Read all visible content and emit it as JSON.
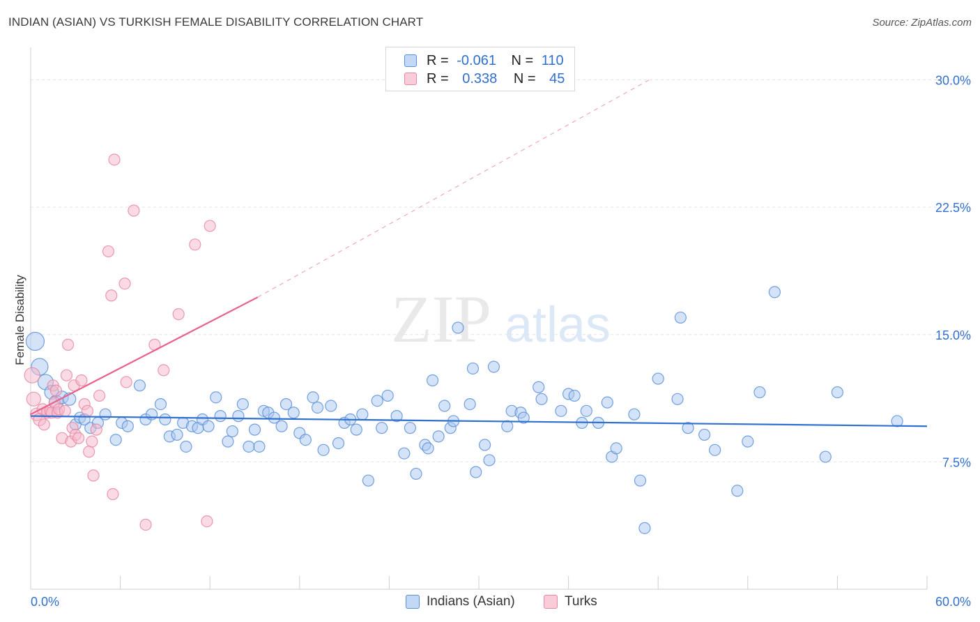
{
  "title": "INDIAN (ASIAN) VS TURKISH FEMALE DISABILITY CORRELATION CHART",
  "source": "Source: ZipAtlas.com",
  "watermark": {
    "zip": "ZIP",
    "atlas": "atlas"
  },
  "colors": {
    "blue": "#2f6fd0",
    "blue_fill": "#a9c8f0",
    "blue_stroke": "#5b8fd8",
    "pink": "#e8608b",
    "pink_fill": "#f5b8cb",
    "pink_stroke": "#e8879f",
    "axis_label": "#2f6fd0",
    "grid": "#e3e3e3"
  },
  "legend": {
    "rows": [
      {
        "r_label": "R =",
        "r_value": "-0.061",
        "n_label": "N =",
        "n_value": "110",
        "color": "blue"
      },
      {
        "r_label": "R =",
        "r_value": "0.338",
        "n_label": "N =",
        "n_value": "45",
        "color": "pink"
      }
    ]
  },
  "chart_data": {
    "type": "scatter",
    "title": "INDIAN (ASIAN) VS TURKISH FEMALE DISABILITY CORRELATION CHART",
    "xlabel": "",
    "ylabel": "Female Disability",
    "xlim": [
      0,
      60
    ],
    "ylim": [
      0,
      31.5
    ],
    "x_tick_labels": [
      "0.0%",
      "60.0%"
    ],
    "y_ticks": [
      7.5,
      15.0,
      22.5,
      30.0
    ],
    "y_tick_labels": [
      "7.5%",
      "15.0%",
      "22.5%",
      "30.0%"
    ],
    "grid": "horizontal dashed",
    "legend_position": "bottom-center",
    "series": [
      {
        "name": "Indians (Asian)",
        "color": "blue",
        "trend": {
          "x0": 0,
          "y0": 10.2,
          "x1": 60,
          "y1": 9.6
        },
        "points": [
          [
            0.3,
            14.6,
            13
          ],
          [
            0.6,
            13.1,
            12
          ],
          [
            1.0,
            12.2,
            11
          ],
          [
            1.4,
            11.6,
            10
          ],
          [
            1.7,
            11.0,
            10
          ],
          [
            2.1,
            11.3,
            9
          ],
          [
            2.6,
            11.2,
            9
          ],
          [
            3.0,
            9.7,
            8
          ],
          [
            3.3,
            10.1,
            8
          ],
          [
            3.6,
            10.0,
            8
          ],
          [
            4.0,
            9.5,
            8
          ],
          [
            4.5,
            9.8,
            8
          ],
          [
            5.0,
            10.3,
            8
          ],
          [
            5.7,
            8.8,
            8
          ],
          [
            6.1,
            9.8,
            8
          ],
          [
            6.5,
            9.6,
            8
          ],
          [
            7.3,
            12.0,
            8
          ],
          [
            7.7,
            10.0,
            8
          ],
          [
            8.1,
            10.3,
            8
          ],
          [
            8.7,
            10.9,
            8
          ],
          [
            9.0,
            10.0,
            8
          ],
          [
            9.3,
            9.0,
            8
          ],
          [
            9.8,
            9.1,
            8
          ],
          [
            10.2,
            9.8,
            8
          ],
          [
            10.4,
            8.4,
            8
          ],
          [
            10.8,
            9.6,
            8
          ],
          [
            11.2,
            9.5,
            8
          ],
          [
            11.5,
            10.0,
            8
          ],
          [
            11.9,
            9.6,
            8
          ],
          [
            12.4,
            11.3,
            8
          ],
          [
            12.7,
            10.2,
            8
          ],
          [
            13.2,
            8.7,
            8
          ],
          [
            13.5,
            9.3,
            8
          ],
          [
            13.9,
            10.2,
            8
          ],
          [
            14.2,
            10.9,
            8
          ],
          [
            14.6,
            8.4,
            8
          ],
          [
            15.0,
            9.4,
            8
          ],
          [
            15.3,
            8.4,
            8
          ],
          [
            15.6,
            10.5,
            8
          ],
          [
            15.9,
            10.4,
            8
          ],
          [
            16.3,
            10.1,
            8
          ],
          [
            16.8,
            9.6,
            8
          ],
          [
            17.1,
            10.9,
            8
          ],
          [
            17.6,
            10.4,
            8
          ],
          [
            18.0,
            9.2,
            8
          ],
          [
            18.4,
            8.8,
            8
          ],
          [
            18.9,
            11.3,
            8
          ],
          [
            19.2,
            10.7,
            8
          ],
          [
            19.6,
            8.2,
            8
          ],
          [
            20.1,
            10.8,
            8
          ],
          [
            20.6,
            8.6,
            8
          ],
          [
            21.0,
            9.8,
            8
          ],
          [
            21.4,
            10.0,
            8
          ],
          [
            21.8,
            9.4,
            8
          ],
          [
            22.2,
            10.3,
            8
          ],
          [
            22.6,
            6.4,
            8
          ],
          [
            23.2,
            11.1,
            8
          ],
          [
            23.5,
            9.5,
            8
          ],
          [
            23.9,
            11.4,
            8
          ],
          [
            24.5,
            10.2,
            8
          ],
          [
            25.0,
            8.0,
            8
          ],
          [
            25.4,
            9.5,
            8
          ],
          [
            25.8,
            6.8,
            8
          ],
          [
            26.4,
            8.5,
            8
          ],
          [
            26.6,
            8.3,
            8
          ],
          [
            26.9,
            12.3,
            8
          ],
          [
            27.3,
            9.0,
            8
          ],
          [
            27.7,
            10.8,
            8
          ],
          [
            28.1,
            9.5,
            8
          ],
          [
            28.3,
            9.9,
            8
          ],
          [
            28.6,
            15.4,
            8
          ],
          [
            29.4,
            10.9,
            8
          ],
          [
            29.6,
            13.0,
            8
          ],
          [
            29.8,
            6.9,
            8
          ],
          [
            30.4,
            8.5,
            8
          ],
          [
            30.7,
            7.6,
            8
          ],
          [
            31.0,
            13.1,
            8
          ],
          [
            31.9,
            9.6,
            8
          ],
          [
            32.2,
            10.5,
            8
          ],
          [
            32.8,
            10.4,
            8
          ],
          [
            33.0,
            10.1,
            8
          ],
          [
            34.0,
            11.9,
            8
          ],
          [
            34.2,
            11.2,
            8
          ],
          [
            35.5,
            10.5,
            8
          ],
          [
            36.0,
            11.5,
            8
          ],
          [
            36.4,
            11.4,
            8
          ],
          [
            36.9,
            9.8,
            8
          ],
          [
            37.2,
            10.5,
            8
          ],
          [
            38.0,
            9.8,
            8
          ],
          [
            38.6,
            11.0,
            8
          ],
          [
            38.9,
            7.8,
            8
          ],
          [
            39.2,
            8.3,
            8
          ],
          [
            40.4,
            10.3,
            8
          ],
          [
            40.8,
            6.4,
            8
          ],
          [
            41.1,
            3.6,
            8
          ],
          [
            42.0,
            12.4,
            8
          ],
          [
            43.3,
            11.2,
            8
          ],
          [
            43.5,
            16.0,
            8
          ],
          [
            44.0,
            9.5,
            8
          ],
          [
            45.1,
            9.1,
            8
          ],
          [
            45.8,
            8.2,
            8
          ],
          [
            47.3,
            5.8,
            8
          ],
          [
            48.0,
            8.7,
            8
          ],
          [
            48.8,
            11.6,
            8
          ],
          [
            49.8,
            17.5,
            8
          ],
          [
            54.0,
            11.6,
            8
          ],
          [
            53.2,
            7.8,
            8
          ],
          [
            58.0,
            9.9,
            8
          ]
        ]
      },
      {
        "name": "Turks",
        "color": "pink",
        "trend": {
          "x0": 0,
          "y0": 10.3,
          "x1": 15.2,
          "y1": 17.2
        },
        "trend_dashed": {
          "x0": 15.2,
          "y0": 17.2,
          "x1": 41.4,
          "y1": 30.0
        },
        "points": [
          [
            0.2,
            11.2,
            10
          ],
          [
            0.4,
            10.3,
            9
          ],
          [
            0.6,
            10.0,
            9
          ],
          [
            0.8,
            10.6,
            8
          ],
          [
            0.9,
            9.7,
            8
          ],
          [
            1.1,
            10.4,
            8
          ],
          [
            1.3,
            10.5,
            8
          ],
          [
            1.4,
            10.4,
            8
          ],
          [
            1.5,
            12.0,
            8
          ],
          [
            1.6,
            11.0,
            8
          ],
          [
            1.7,
            11.7,
            8
          ],
          [
            1.8,
            10.4,
            8
          ],
          [
            1.9,
            10.6,
            8
          ],
          [
            2.1,
            8.9,
            8
          ],
          [
            2.3,
            10.5,
            8
          ],
          [
            2.4,
            12.6,
            8
          ],
          [
            2.5,
            14.4,
            8
          ],
          [
            2.7,
            8.7,
            8
          ],
          [
            2.8,
            9.5,
            8
          ],
          [
            2.9,
            12.0,
            8
          ],
          [
            3.0,
            9.1,
            8
          ],
          [
            3.2,
            8.9,
            8
          ],
          [
            3.4,
            12.3,
            8
          ],
          [
            3.6,
            10.9,
            8
          ],
          [
            3.8,
            10.5,
            8
          ],
          [
            3.9,
            8.1,
            8
          ],
          [
            4.1,
            8.7,
            8
          ],
          [
            4.2,
            6.7,
            8
          ],
          [
            4.4,
            9.4,
            8
          ],
          [
            4.6,
            11.4,
            8
          ],
          [
            5.2,
            19.9,
            8
          ],
          [
            5.4,
            17.3,
            8
          ],
          [
            5.5,
            5.6,
            8
          ],
          [
            5.6,
            25.3,
            8
          ],
          [
            6.3,
            18.0,
            8
          ],
          [
            6.4,
            12.2,
            8
          ],
          [
            6.9,
            22.3,
            8
          ],
          [
            7.7,
            3.8,
            8
          ],
          [
            8.3,
            14.4,
            8
          ],
          [
            8.9,
            12.9,
            8
          ],
          [
            9.9,
            16.2,
            8
          ],
          [
            11.0,
            20.3,
            8
          ],
          [
            11.8,
            4.0,
            8
          ],
          [
            12.0,
            21.4,
            8
          ],
          [
            0.1,
            12.6,
            11
          ]
        ]
      }
    ]
  },
  "bottom_legend": [
    {
      "label": "Indians (Asian)",
      "color": "blue"
    },
    {
      "label": "Turks",
      "color": "pink"
    }
  ]
}
